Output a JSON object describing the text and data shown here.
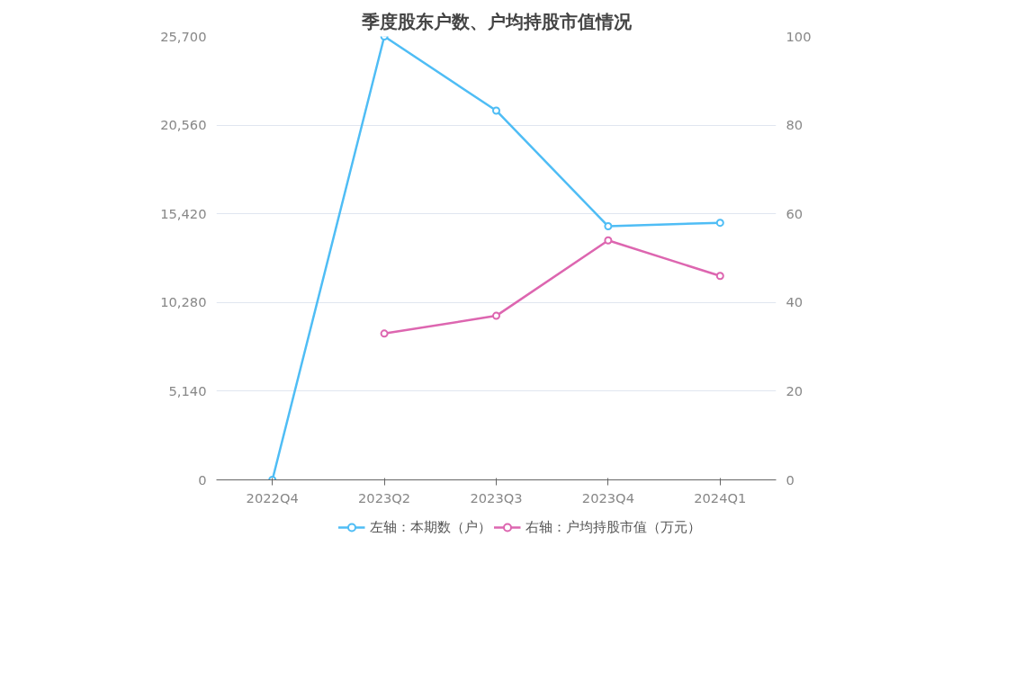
{
  "chart_data": {
    "type": "line",
    "title": "季度股东户数、户均持股市值情况",
    "categories": [
      "2022Q4",
      "2023Q2",
      "2023Q3",
      "2023Q4",
      "2024Q1"
    ],
    "series": [
      {
        "name": "左轴：本期数（户）",
        "color": "#4fbdf5",
        "values": [
          0,
          25700,
          21400,
          14700,
          14900
        ]
      },
      {
        "name": "右轴：户均持股市值（万元）",
        "color": "#dd66b0",
        "axis": "y2",
        "values": [
          null,
          33,
          37,
          54,
          46
        ]
      }
    ],
    "ylim": [
      0,
      25700
    ],
    "yticks": [
      0,
      {
        "value": 5140,
        "label": "5,140"
      },
      {
        "value": 10280,
        "label": "10,280"
      },
      {
        "value": 15420,
        "label": "15,420"
      },
      {
        "value": 20560,
        "label": "20,560"
      },
      {
        "value": 25700,
        "label": "25,700"
      }
    ],
    "y2lim": [
      0,
      100
    ],
    "y2ticks": [
      0,
      20,
      40,
      60,
      80,
      100
    ],
    "grid": "y",
    "legend": "bottom",
    "marker": "circle",
    "line_style": "solid"
  }
}
